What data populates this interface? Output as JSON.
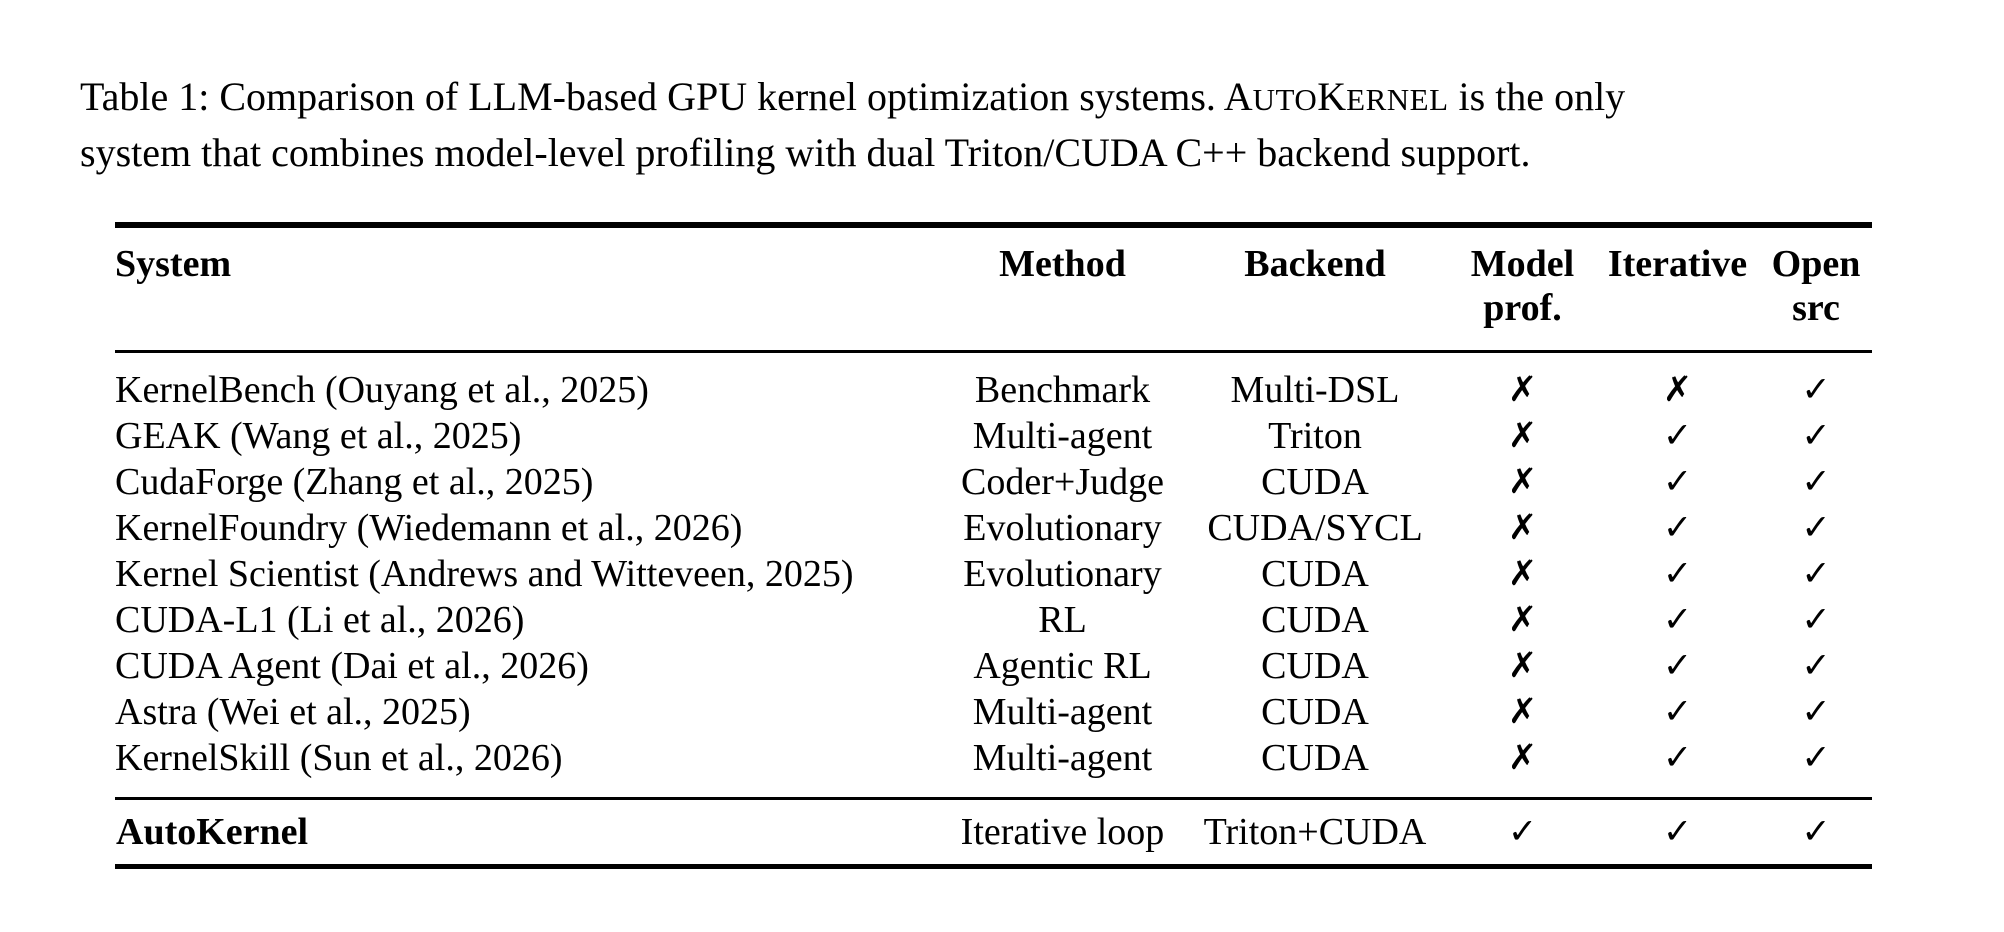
{
  "caption": {
    "line1_pre": "Table 1: Comparison of LLM-based GPU kernel optimization systems. ",
    "brand": {
      "big1": "A",
      "small1": "UTO",
      "big2": "K",
      "small2": "ERNEL"
    },
    "line1_post": " is the only",
    "line2": "system that combines model-level profiling with dual Triton/CUDA C++ backend support."
  },
  "table": {
    "headers": [
      {
        "line1": "System",
        "line2": ""
      },
      {
        "line1": "Method",
        "line2": ""
      },
      {
        "line1": "Backend",
        "line2": ""
      },
      {
        "line1": "Model",
        "line2": "prof."
      },
      {
        "line1": "Iterative",
        "line2": ""
      },
      {
        "line1": "Open",
        "line2": "src"
      }
    ],
    "marks": {
      "check": "✓",
      "cross": "✗"
    },
    "rows": [
      {
        "system": "KernelBench (Ouyang et al., 2025)",
        "method": "Benchmark",
        "backend": "Multi-DSL",
        "model_prof": "cross",
        "iterative": "cross",
        "open_src": "check"
      },
      {
        "system": "GEAK (Wang et al., 2025)",
        "method": "Multi-agent",
        "backend": "Triton",
        "model_prof": "cross",
        "iterative": "check",
        "open_src": "check"
      },
      {
        "system": "CudaForge (Zhang et al., 2025)",
        "method": "Coder+Judge",
        "backend": "CUDA",
        "model_prof": "cross",
        "iterative": "check",
        "open_src": "check"
      },
      {
        "system": "KernelFoundry (Wiedemann et al., 2026)",
        "method": "Evolutionary",
        "backend": "CUDA/SYCL",
        "model_prof": "cross",
        "iterative": "check",
        "open_src": "check"
      },
      {
        "system": "Kernel Scientist (Andrews and Witteveen, 2025)",
        "method": "Evolutionary",
        "backend": "CUDA",
        "model_prof": "cross",
        "iterative": "check",
        "open_src": "check"
      },
      {
        "system": "CUDA-L1 (Li et al., 2026)",
        "method": "RL",
        "backend": "CUDA",
        "model_prof": "cross",
        "iterative": "check",
        "open_src": "check"
      },
      {
        "system": "CUDA Agent (Dai et al., 2026)",
        "method": "Agentic RL",
        "backend": "CUDA",
        "model_prof": "cross",
        "iterative": "check",
        "open_src": "check"
      },
      {
        "system": "Astra (Wei et al., 2025)",
        "method": "Multi-agent",
        "backend": "CUDA",
        "model_prof": "cross",
        "iterative": "check",
        "open_src": "check"
      },
      {
        "system": "KernelSkill (Sun et al., 2026)",
        "method": "Multi-agent",
        "backend": "CUDA",
        "model_prof": "cross",
        "iterative": "check",
        "open_src": "check"
      }
    ],
    "footer_row": {
      "system": "AutoKernel",
      "method": "Iterative loop",
      "backend": "Triton+CUDA",
      "model_prof": "check",
      "iterative": "check",
      "open_src": "check"
    }
  }
}
